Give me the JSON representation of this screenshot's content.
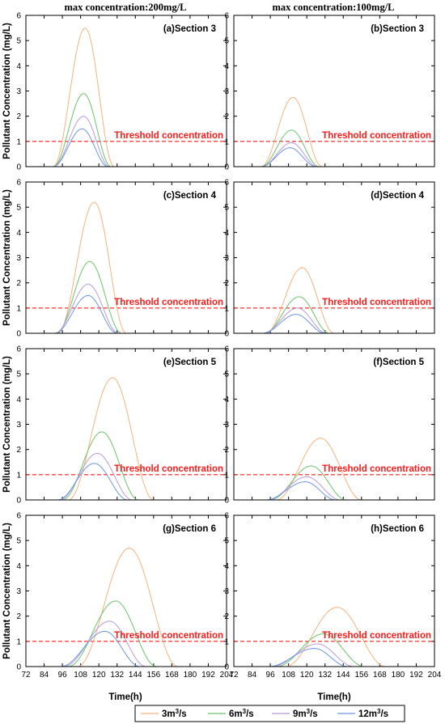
{
  "figure": {
    "column_titles": [
      "max concentration:200mg/L",
      "max concentration:100mg/L"
    ],
    "ylabel": "Pollutant Concentration (mg/L)",
    "xlabel": "Time(h)",
    "threshold_label": "Threshold concentration",
    "legend": [
      {
        "base": "3m",
        "sup": "3",
        "tail": "/s",
        "color": "#f8b27c"
      },
      {
        "base": "6m",
        "sup": "3",
        "tail": "/s",
        "color": "#6cc46c"
      },
      {
        "base": "9m",
        "sup": "3",
        "tail": "/s",
        "color": "#b79bd8"
      },
      {
        "base": "12m",
        "sup": "3",
        "tail": "/s",
        "color": "#6e96e0"
      }
    ],
    "colors": {
      "threshold": "#ff1a1a",
      "frame": "#000000"
    }
  },
  "chart_data": [
    {
      "type": "line",
      "title": "(a)Section 3",
      "xlim": [
        72,
        204
      ],
      "ylim": [
        0,
        6
      ],
      "xticks": [
        72,
        84,
        96,
        108,
        120,
        132,
        144,
        156,
        168,
        180,
        192,
        204
      ],
      "yticks": [
        0,
        1,
        2,
        3,
        4,
        5,
        6
      ],
      "threshold": 1,
      "series": [
        {
          "name": "3m³/s",
          "color": "#f8b27c",
          "peak_x": 111,
          "peak_y": 5.5,
          "start_x": 90,
          "end_x": 130
        },
        {
          "name": "6m³/s",
          "color": "#6cc46c",
          "peak_x": 110,
          "peak_y": 2.9,
          "start_x": 90,
          "end_x": 128
        },
        {
          "name": "9m³/s",
          "color": "#b79bd8",
          "peak_x": 110,
          "peak_y": 2.0,
          "start_x": 90,
          "end_x": 127
        },
        {
          "name": "12m³/s",
          "color": "#6e96e0",
          "peak_x": 109,
          "peak_y": 1.5,
          "start_x": 90,
          "end_x": 126
        }
      ]
    },
    {
      "type": "line",
      "title": "(b)Section 3",
      "xlim": [
        72,
        204
      ],
      "ylim": [
        0,
        6
      ],
      "xticks": [
        72,
        84,
        96,
        108,
        120,
        132,
        144,
        156,
        168,
        180,
        192,
        204
      ],
      "yticks": [
        0,
        1,
        2,
        3,
        4,
        5,
        6
      ],
      "threshold": 1,
      "series": [
        {
          "name": "3m³/s",
          "color": "#f8b27c",
          "peak_x": 111,
          "peak_y": 2.75,
          "start_x": 90,
          "end_x": 130
        },
        {
          "name": "6m³/s",
          "color": "#6cc46c",
          "peak_x": 110,
          "peak_y": 1.45,
          "start_x": 90,
          "end_x": 128
        },
        {
          "name": "9m³/s",
          "color": "#b79bd8",
          "peak_x": 110,
          "peak_y": 0.95,
          "start_x": 90,
          "end_x": 127
        },
        {
          "name": "12m³/s",
          "color": "#6e96e0",
          "peak_x": 109,
          "peak_y": 0.75,
          "start_x": 90,
          "end_x": 126
        }
      ]
    },
    {
      "type": "line",
      "title": "(c)Section 4",
      "xlim": [
        72,
        204
      ],
      "ylim": [
        0,
        6
      ],
      "xticks": [
        72,
        84,
        96,
        108,
        120,
        132,
        144,
        156,
        168,
        180,
        192,
        204
      ],
      "yticks": [
        0,
        1,
        2,
        3,
        4,
        5,
        6
      ],
      "threshold": 1,
      "series": [
        {
          "name": "3m³/s",
          "color": "#f8b27c",
          "peak_x": 117,
          "peak_y": 5.2,
          "start_x": 93,
          "end_x": 138
        },
        {
          "name": "6m³/s",
          "color": "#6cc46c",
          "peak_x": 114,
          "peak_y": 2.85,
          "start_x": 92,
          "end_x": 135
        },
        {
          "name": "9m³/s",
          "color": "#b79bd8",
          "peak_x": 113,
          "peak_y": 1.95,
          "start_x": 91,
          "end_x": 133
        },
        {
          "name": "12m³/s",
          "color": "#6e96e0",
          "peak_x": 113,
          "peak_y": 1.5,
          "start_x": 91,
          "end_x": 132
        }
      ]
    },
    {
      "type": "line",
      "title": "(d)Section 4",
      "xlim": [
        72,
        204
      ],
      "ylim": [
        0,
        6
      ],
      "xticks": [
        72,
        84,
        96,
        108,
        120,
        132,
        144,
        156,
        168,
        180,
        192,
        204
      ],
      "yticks": [
        0,
        1,
        2,
        3,
        4,
        5,
        6
      ],
      "threshold": 1,
      "series": [
        {
          "name": "3m³/s",
          "color": "#f8b27c",
          "peak_x": 117,
          "peak_y": 2.6,
          "start_x": 93,
          "end_x": 138
        },
        {
          "name": "6m³/s",
          "color": "#6cc46c",
          "peak_x": 115,
          "peak_y": 1.45,
          "start_x": 92,
          "end_x": 135
        },
        {
          "name": "9m³/s",
          "color": "#b79bd8",
          "peak_x": 114,
          "peak_y": 1.0,
          "start_x": 91,
          "end_x": 133
        },
        {
          "name": "12m³/s",
          "color": "#6e96e0",
          "peak_x": 113,
          "peak_y": 0.75,
          "start_x": 91,
          "end_x": 132
        }
      ]
    },
    {
      "type": "line",
      "title": "(e)Section 5",
      "xlim": [
        72,
        204
      ],
      "ylim": [
        0,
        6
      ],
      "xticks": [
        72,
        84,
        96,
        108,
        120,
        132,
        144,
        156,
        168,
        180,
        192,
        204
      ],
      "yticks": [
        0,
        1,
        2,
        3,
        4,
        5,
        6
      ],
      "threshold": 1,
      "series": [
        {
          "name": "3m³/s",
          "color": "#f8b27c",
          "peak_x": 129,
          "peak_y": 4.85,
          "start_x": 100,
          "end_x": 156
        },
        {
          "name": "6m³/s",
          "color": "#6cc46c",
          "peak_x": 122,
          "peak_y": 2.7,
          "start_x": 96,
          "end_x": 146
        },
        {
          "name": "9m³/s",
          "color": "#b79bd8",
          "peak_x": 119,
          "peak_y": 1.85,
          "start_x": 94,
          "end_x": 142
        },
        {
          "name": "12m³/s",
          "color": "#6e96e0",
          "peak_x": 117,
          "peak_y": 1.45,
          "start_x": 93,
          "end_x": 139
        }
      ]
    },
    {
      "type": "line",
      "title": "(f)Section 5",
      "xlim": [
        72,
        204
      ],
      "ylim": [
        0,
        6
      ],
      "xticks": [
        72,
        84,
        96,
        108,
        120,
        132,
        144,
        156,
        168,
        180,
        192,
        204
      ],
      "yticks": [
        0,
        1,
        2,
        3,
        4,
        5,
        6
      ],
      "threshold": 1,
      "series": [
        {
          "name": "3m³/s",
          "color": "#f8b27c",
          "peak_x": 129,
          "peak_y": 2.45,
          "start_x": 100,
          "end_x": 156
        },
        {
          "name": "6m³/s",
          "color": "#6cc46c",
          "peak_x": 123,
          "peak_y": 1.35,
          "start_x": 96,
          "end_x": 146
        },
        {
          "name": "9m³/s",
          "color": "#b79bd8",
          "peak_x": 120,
          "peak_y": 0.92,
          "start_x": 94,
          "end_x": 142
        },
        {
          "name": "12m³/s",
          "color": "#6e96e0",
          "peak_x": 119,
          "peak_y": 0.72,
          "start_x": 93,
          "end_x": 139
        }
      ]
    },
    {
      "type": "line",
      "title": "(g)Section 6",
      "xlim": [
        72,
        204
      ],
      "ylim": [
        0,
        6
      ],
      "xticks": [
        72,
        84,
        96,
        108,
        120,
        132,
        144,
        156,
        168,
        180,
        192,
        204
      ],
      "yticks": [
        0,
        1,
        2,
        3,
        4,
        5,
        6
      ],
      "threshold": 1,
      "series": [
        {
          "name": "3m³/s",
          "color": "#f8b27c",
          "peak_x": 140,
          "peak_y": 4.7,
          "start_x": 106,
          "end_x": 172
        },
        {
          "name": "6m³/s",
          "color": "#6cc46c",
          "peak_x": 131,
          "peak_y": 2.6,
          "start_x": 100,
          "end_x": 158
        },
        {
          "name": "9m³/s",
          "color": "#b79bd8",
          "peak_x": 127,
          "peak_y": 1.8,
          "start_x": 97,
          "end_x": 151
        },
        {
          "name": "12m³/s",
          "color": "#6e96e0",
          "peak_x": 124,
          "peak_y": 1.4,
          "start_x": 95,
          "end_x": 147
        }
      ]
    },
    {
      "type": "line",
      "title": "(h)Section 6",
      "xlim": [
        72,
        204
      ],
      "ylim": [
        0,
        6
      ],
      "xticks": [
        72,
        84,
        96,
        108,
        120,
        132,
        144,
        156,
        168,
        180,
        192,
        204
      ],
      "yticks": [
        0,
        1,
        2,
        3,
        4,
        5,
        6
      ],
      "threshold": 1,
      "series": [
        {
          "name": "3m³/s",
          "color": "#f8b27c",
          "peak_x": 140,
          "peak_y": 2.35,
          "start_x": 106,
          "end_x": 172
        },
        {
          "name": "6m³/s",
          "color": "#6cc46c",
          "peak_x": 131,
          "peak_y": 1.3,
          "start_x": 100,
          "end_x": 158
        },
        {
          "name": "9m³/s",
          "color": "#b79bd8",
          "peak_x": 127,
          "peak_y": 0.9,
          "start_x": 97,
          "end_x": 151
        },
        {
          "name": "12m³/s",
          "color": "#6e96e0",
          "peak_x": 125,
          "peak_y": 0.72,
          "start_x": 95,
          "end_x": 147
        }
      ]
    }
  ]
}
